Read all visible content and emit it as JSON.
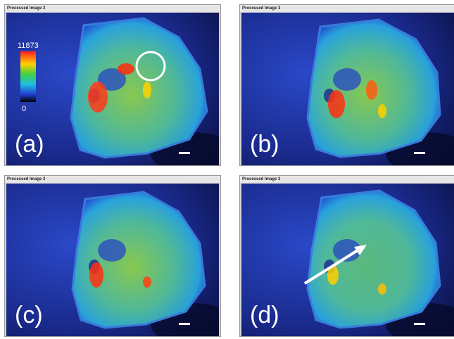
{
  "panels": [
    {
      "title": "Processed Image 3",
      "label": "(a)"
    },
    {
      "title": "Processed Image 3",
      "label": "(b)"
    },
    {
      "title": "Processed Image 3",
      "label": "(c)"
    },
    {
      "title": "Processed Image 3",
      "label": "(d)"
    }
  ],
  "colorbar": {
    "max": 11873,
    "min": 0
  }
}
